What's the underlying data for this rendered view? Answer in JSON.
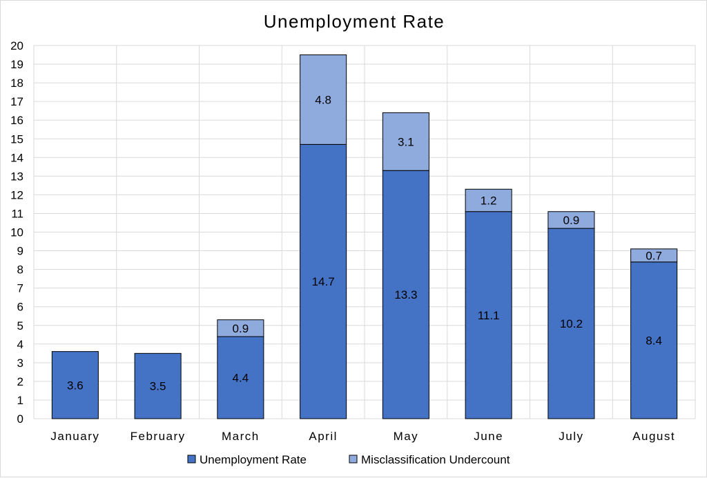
{
  "chart_data": {
    "type": "bar",
    "stacked": true,
    "title": "Unemployment Rate",
    "xlabel": "",
    "ylabel": "",
    "ylim": [
      0,
      20
    ],
    "y_tick_step": 1,
    "grid": true,
    "legend_position": "bottom",
    "categories": [
      "January",
      "February",
      "March",
      "April",
      "May",
      "June",
      "July",
      "August"
    ],
    "series": [
      {
        "name": "Unemployment Rate",
        "color": "#4472c4",
        "values": [
          3.6,
          3.5,
          4.4,
          14.7,
          13.3,
          11.1,
          10.2,
          8.4
        ]
      },
      {
        "name": "Misclassification Undercount",
        "color": "#8faadc",
        "values": [
          null,
          null,
          0.9,
          4.8,
          3.1,
          1.2,
          0.9,
          0.7
        ]
      }
    ]
  }
}
